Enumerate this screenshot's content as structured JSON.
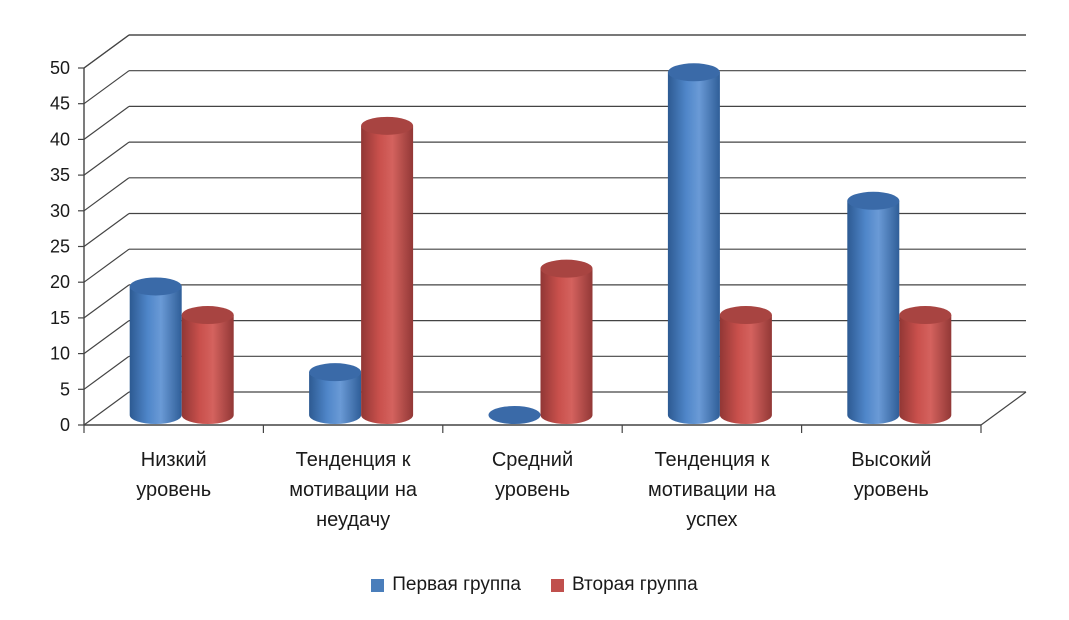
{
  "chart_data": {
    "type": "bar",
    "title": "",
    "xlabel": "",
    "ylabel": "",
    "ylim": [
      0,
      50
    ],
    "yticks": [
      0,
      5,
      10,
      15,
      20,
      25,
      30,
      35,
      40,
      45,
      50
    ],
    "grid": true,
    "legend_position": "bottom",
    "categories": [
      [
        "Низкий",
        "уровень"
      ],
      [
        "Тенденция к",
        "мотивации на",
        "неудачу"
      ],
      [
        "Средний",
        "уровень"
      ],
      [
        "Тенденция к",
        "мотивации на",
        "успех"
      ],
      [
        "Высокий",
        "уровень"
      ]
    ],
    "series": [
      {
        "name": "Первая группа",
        "values": [
          18,
          6,
          0,
          48,
          30
        ],
        "color": "#4a7ebb"
      },
      {
        "name": "Вторая группа",
        "values": [
          14,
          40.5,
          20.5,
          14,
          14
        ],
        "color": "#c0504d"
      }
    ]
  }
}
